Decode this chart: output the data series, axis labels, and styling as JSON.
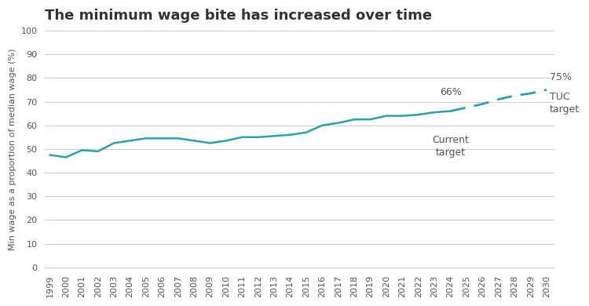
{
  "title": "The minimum wage bite has increased over time",
  "ylabel": "Min wage as a proportion of median wage (%)",
  "line_color": "#2aa3a8",
  "dashed_color": "#2aa3a8",
  "background_color": "#ffffff",
  "plot_bg_color": "#ffffff",
  "grid_color": "#cccccc",
  "ylim": [
    0,
    100
  ],
  "yticks": [
    0,
    10,
    20,
    30,
    40,
    50,
    60,
    70,
    80,
    90,
    100
  ],
  "solid_years": [
    1999,
    2000,
    2001,
    2002,
    2003,
    2004,
    2005,
    2006,
    2007,
    2008,
    2009,
    2010,
    2011,
    2012,
    2013,
    2014,
    2015,
    2016,
    2017,
    2018,
    2019,
    2020,
    2021,
    2022,
    2023,
    2024
  ],
  "solid_values": [
    47.5,
    46.5,
    49.5,
    49.0,
    52.5,
    53.5,
    54.5,
    54.5,
    54.5,
    53.5,
    52.5,
    53.5,
    55.0,
    55.0,
    55.5,
    56.0,
    57.0,
    60.0,
    61.0,
    62.5,
    62.5,
    64.0,
    64.0,
    64.5,
    65.5,
    66.0
  ],
  "dashed_years": [
    2024,
    2025,
    2026,
    2027,
    2028,
    2029,
    2030
  ],
  "dashed_values": [
    66.0,
    67.5,
    69.0,
    71.0,
    72.5,
    73.5,
    75.0
  ],
  "title_fontsize": 13,
  "ylabel_fontsize": 8,
  "tick_fontsize": 8,
  "annot_fontsize": 9,
  "text_color": "#555555",
  "title_color": "#333333"
}
